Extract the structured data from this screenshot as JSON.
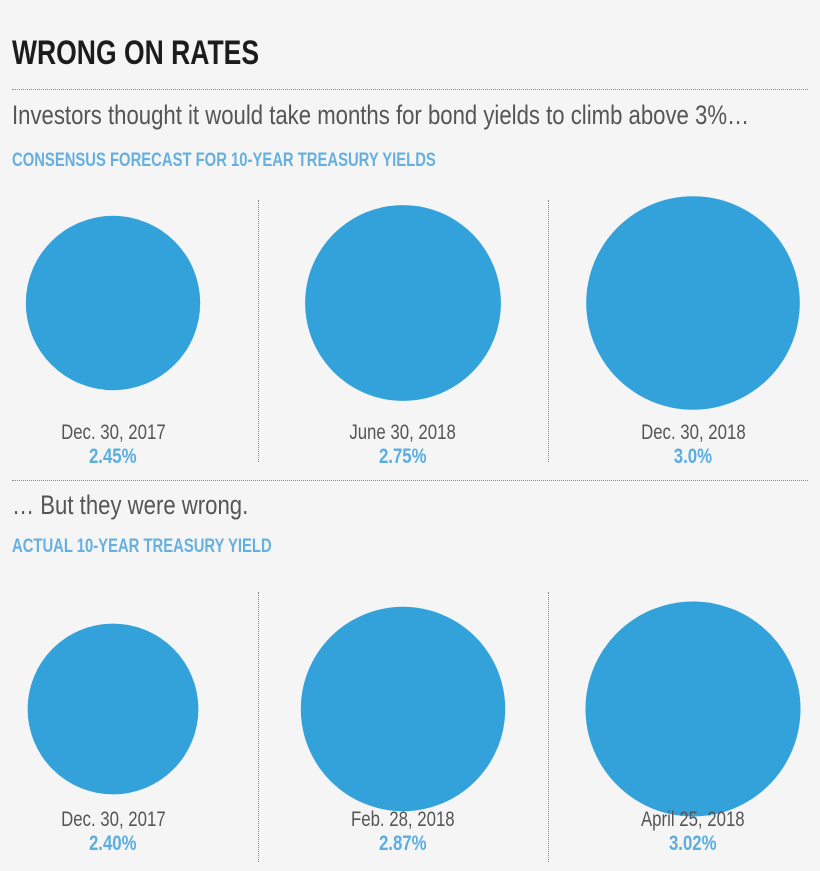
{
  "title": "WRONG ON RATES",
  "intro_top": "Investors thought it would take months for bond yields to climb above 3%…",
  "intro_bottom": "… But they were wrong.",
  "colors": {
    "circle": "#33a2db",
    "section_label": "#66b0e0",
    "value_label": "#5aaee2",
    "background": "#f5f5f5"
  },
  "chart_data": [
    {
      "type": "proportional-circles",
      "title": "CONSENSUS FORECAST FOR 10-YEAR TREASURY YIELDS",
      "categories": [
        "Dec. 30, 2017",
        "June 30, 2018",
        "Dec. 30, 2018"
      ],
      "values": [
        2.45,
        2.75,
        3.0
      ],
      "labels": [
        "2.45%",
        "2.75%",
        "3.0%"
      ]
    },
    {
      "type": "proportional-circles",
      "title": "ACTUAL 10-YEAR TREASURY YIELD",
      "categories": [
        "Dec. 30, 2017",
        "Feb. 28, 2018",
        "April 25, 2018"
      ],
      "values": [
        2.4,
        2.87,
        3.02
      ],
      "labels": [
        "2.40%",
        "2.87%",
        "3.02%"
      ]
    }
  ]
}
